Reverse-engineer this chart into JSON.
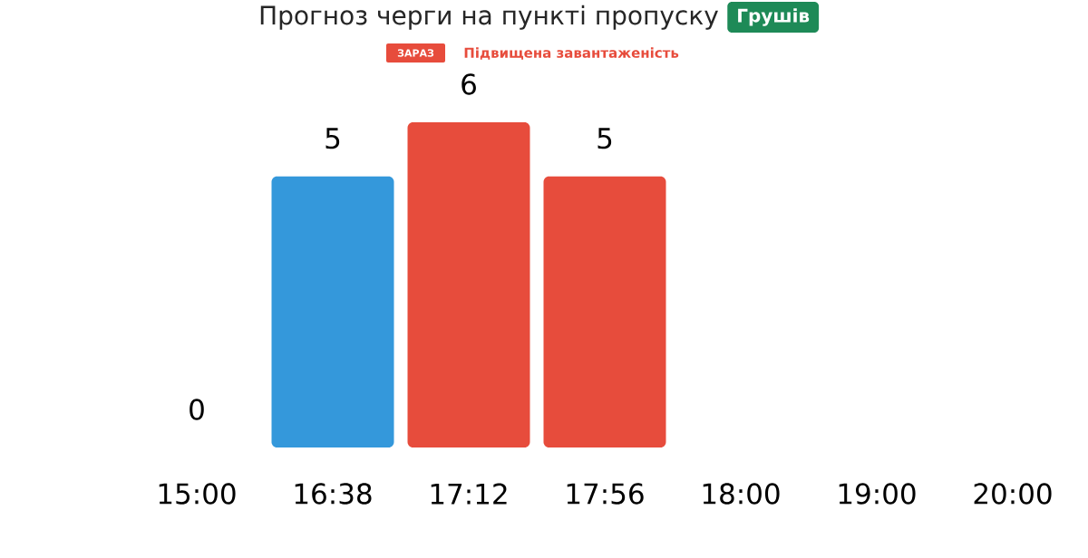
{
  "chart_data": {
    "type": "bar",
    "title": "Прогноз черги на пункті пропуску",
    "subtitle": "Підвищена завантаженість",
    "annotations": [
      "Грушів",
      "ЗАРАЗ"
    ],
    "categories": [
      "15:00",
      "16:38",
      "17:12",
      "17:56",
      "18:00",
      "19:00",
      "20:00"
    ],
    "values": [
      0,
      5,
      6,
      5,
      null,
      null,
      null
    ],
    "colors": [
      null,
      "#3498db",
      "#e74c3c",
      "#e74c3c",
      null,
      null,
      null
    ],
    "ylim": [
      0,
      6
    ],
    "data_labels": true
  }
}
